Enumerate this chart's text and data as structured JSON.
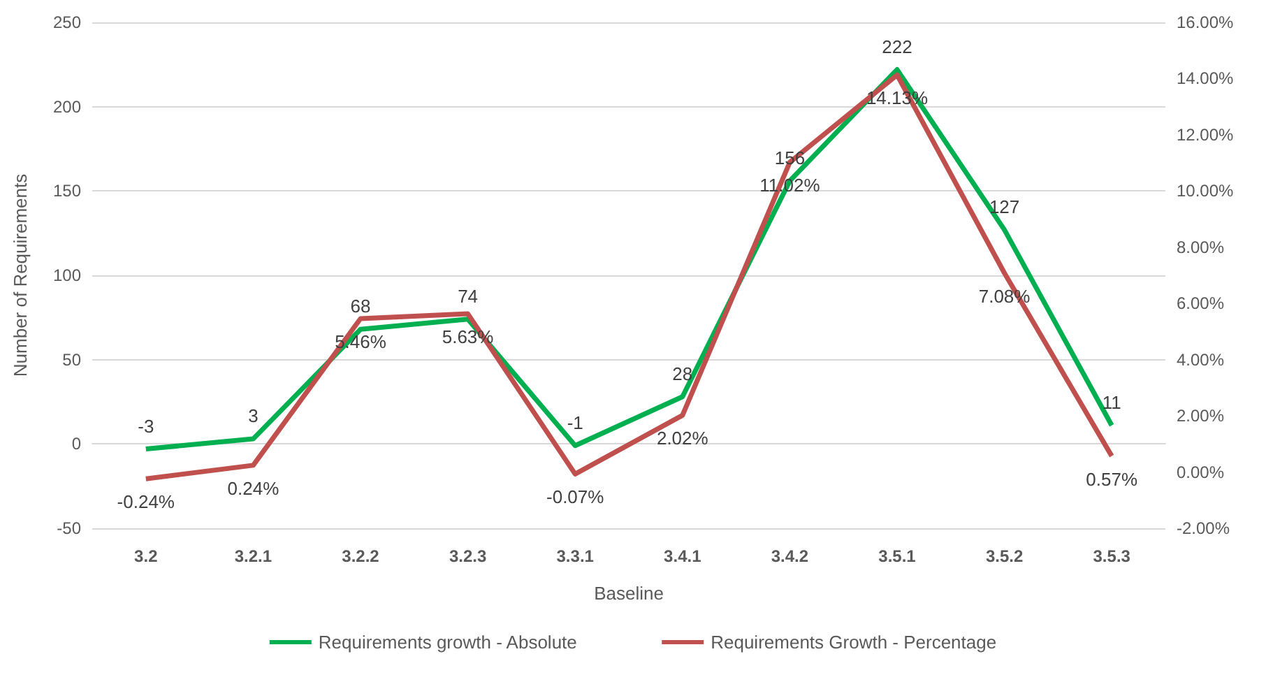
{
  "chart_data": {
    "type": "line",
    "xlabel": "Baseline",
    "ylabel": "Number of Requirements",
    "categories": [
      "3.2",
      "3.2.1",
      "3.2.2",
      "3.2.3",
      "3.3.1",
      "3.4.1",
      "3.4.2",
      "3.5.1",
      "3.5.2",
      "3.5.3"
    ],
    "series": [
      {
        "name": "Requirements growth - Absolute",
        "color": "#00b050",
        "values": [
          -3,
          3,
          68,
          74,
          -1,
          28,
          156,
          222,
          127,
          11
        ],
        "value_labels": [
          "-3",
          "3",
          "68",
          "74",
          "-1",
          "28",
          "156",
          "222",
          "127",
          "11"
        ]
      },
      {
        "name": "Requirements Growth - Percentage",
        "color": "#c0504d",
        "axis": "y2",
        "values": [
          -0.24,
          0.24,
          5.46,
          5.63,
          -0.07,
          2.02,
          11.02,
          14.13,
          7.08,
          0.57
        ],
        "value_labels": [
          "-0.24%",
          "0.24%",
          "5.46%",
          "5.63%",
          "-0.07%",
          "2.02%",
          "11.02%",
          "14.13%",
          "7.08%",
          "0.57%"
        ]
      }
    ],
    "ylim": [
      -50,
      250
    ],
    "yticks": [
      -50,
      0,
      50,
      100,
      150,
      200,
      250
    ],
    "y2lim": [
      -2,
      16
    ],
    "y2ticks": [
      {
        "value": -2,
        "label": "-2.00%"
      },
      {
        "value": 0,
        "label": "0.00%"
      },
      {
        "value": 2,
        "label": "2.00%"
      },
      {
        "value": 4,
        "label": "4.00%"
      },
      {
        "value": 6,
        "label": "6.00%"
      },
      {
        "value": 8,
        "label": "8.00%"
      },
      {
        "value": 10,
        "label": "10.00%"
      },
      {
        "value": 12,
        "label": "12.00%"
      },
      {
        "value": 14,
        "label": "14.00%"
      },
      {
        "value": 16,
        "label": "16.00%"
      }
    ],
    "grid": "y",
    "legend": "bottom",
    "marker": "none",
    "line_style": "solid"
  }
}
